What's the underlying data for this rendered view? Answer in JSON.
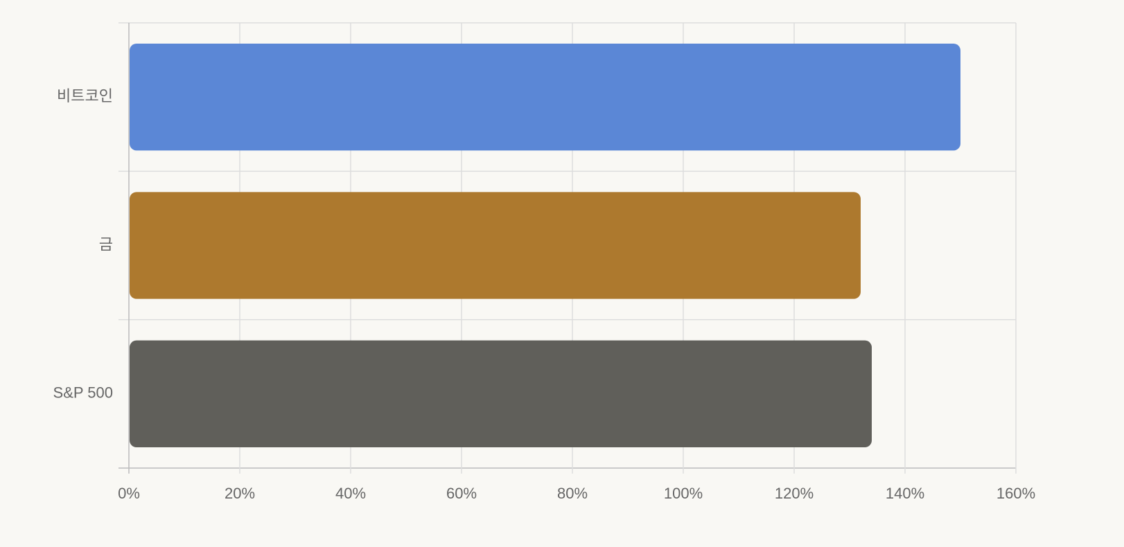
{
  "chart_data": {
    "type": "bar",
    "orientation": "horizontal",
    "categories": [
      "비트코인",
      "금",
      "S&P 500"
    ],
    "values": [
      150,
      132,
      134
    ],
    "colors": [
      "#5b87d6",
      "#ad792e",
      "#605f5a"
    ],
    "xlim": [
      0,
      160
    ],
    "xticks": [
      {
        "value": 0,
        "label": "0%"
      },
      {
        "value": 20,
        "label": "20%"
      },
      {
        "value": 40,
        "label": "40%"
      },
      {
        "value": 60,
        "label": "60%"
      },
      {
        "value": 80,
        "label": "80%"
      },
      {
        "value": 100,
        "label": "100%"
      },
      {
        "value": 120,
        "label": "120%"
      },
      {
        "value": 140,
        "label": "140%"
      },
      {
        "value": 160,
        "label": "160%"
      }
    ],
    "grid": true
  }
}
